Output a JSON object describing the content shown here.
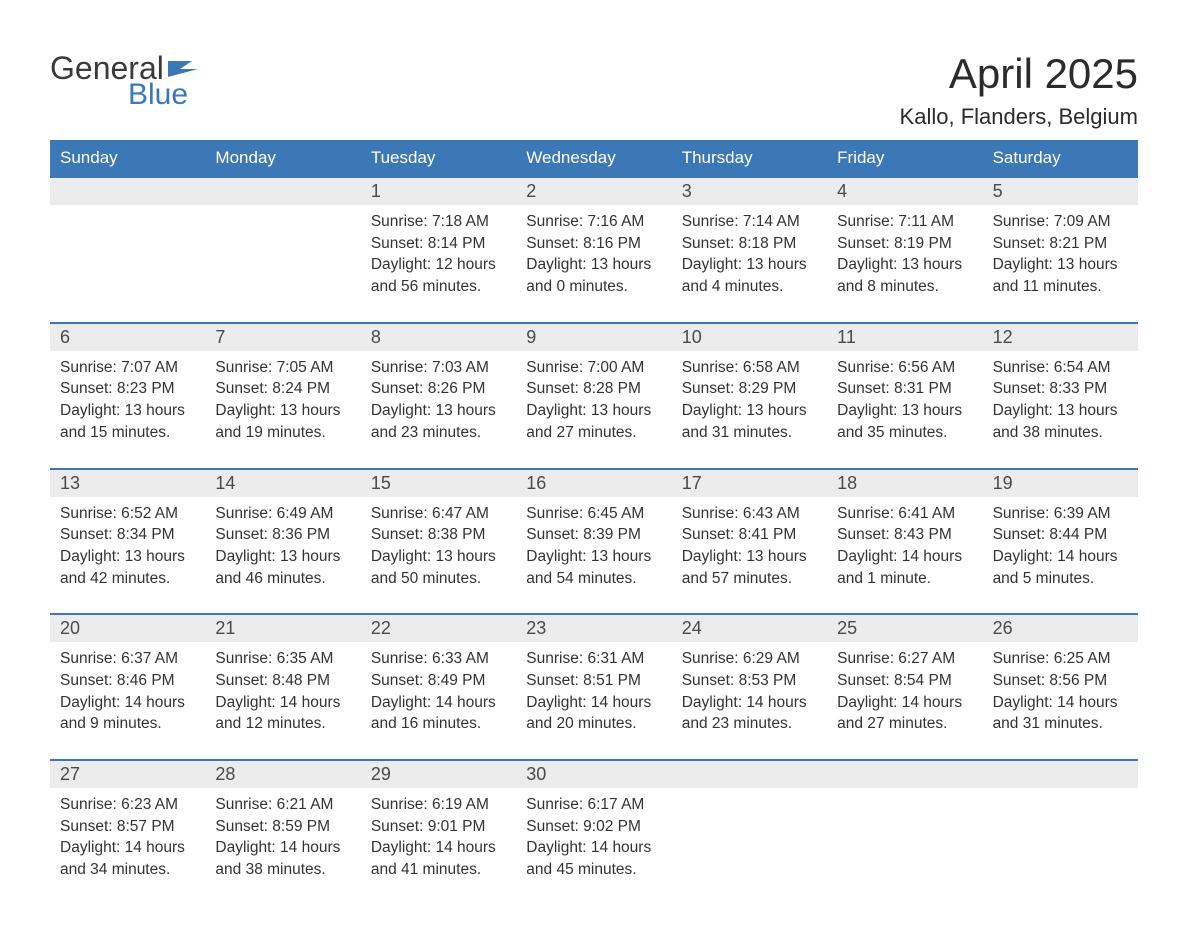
{
  "logo": {
    "line1": "General",
    "line2": "Blue",
    "flag_color": "#3b78b5"
  },
  "title": "April 2025",
  "subtitle": "Kallo, Flanders, Belgium",
  "colors": {
    "header_bg": "#3b78b5",
    "header_text": "#ffffff",
    "daynum_bg": "#ececec",
    "daynum_text": "#4a4a4a",
    "body_text": "#333333",
    "week_border": "#3b78b5",
    "page_bg": "#ffffff"
  },
  "font_sizes": {
    "title": 42,
    "subtitle": 22,
    "dayhead": 17,
    "daynum": 18,
    "body": 15.5,
    "logo": 32
  },
  "day_headers": [
    "Sunday",
    "Monday",
    "Tuesday",
    "Wednesday",
    "Thursday",
    "Friday",
    "Saturday"
  ],
  "labels": {
    "sunrise": "Sunrise: ",
    "sunset": "Sunset: ",
    "daylight": "Daylight: "
  },
  "weeks": [
    [
      null,
      null,
      {
        "n": "1",
        "sunrise": "7:18 AM",
        "sunset": "8:14 PM",
        "daylight": "12 hours and 56 minutes."
      },
      {
        "n": "2",
        "sunrise": "7:16 AM",
        "sunset": "8:16 PM",
        "daylight": "13 hours and 0 minutes."
      },
      {
        "n": "3",
        "sunrise": "7:14 AM",
        "sunset": "8:18 PM",
        "daylight": "13 hours and 4 minutes."
      },
      {
        "n": "4",
        "sunrise": "7:11 AM",
        "sunset": "8:19 PM",
        "daylight": "13 hours and 8 minutes."
      },
      {
        "n": "5",
        "sunrise": "7:09 AM",
        "sunset": "8:21 PM",
        "daylight": "13 hours and 11 minutes."
      }
    ],
    [
      {
        "n": "6",
        "sunrise": "7:07 AM",
        "sunset": "8:23 PM",
        "daylight": "13 hours and 15 minutes."
      },
      {
        "n": "7",
        "sunrise": "7:05 AM",
        "sunset": "8:24 PM",
        "daylight": "13 hours and 19 minutes."
      },
      {
        "n": "8",
        "sunrise": "7:03 AM",
        "sunset": "8:26 PM",
        "daylight": "13 hours and 23 minutes."
      },
      {
        "n": "9",
        "sunrise": "7:00 AM",
        "sunset": "8:28 PM",
        "daylight": "13 hours and 27 minutes."
      },
      {
        "n": "10",
        "sunrise": "6:58 AM",
        "sunset": "8:29 PM",
        "daylight": "13 hours and 31 minutes."
      },
      {
        "n": "11",
        "sunrise": "6:56 AM",
        "sunset": "8:31 PM",
        "daylight": "13 hours and 35 minutes."
      },
      {
        "n": "12",
        "sunrise": "6:54 AM",
        "sunset": "8:33 PM",
        "daylight": "13 hours and 38 minutes."
      }
    ],
    [
      {
        "n": "13",
        "sunrise": "6:52 AM",
        "sunset": "8:34 PM",
        "daylight": "13 hours and 42 minutes."
      },
      {
        "n": "14",
        "sunrise": "6:49 AM",
        "sunset": "8:36 PM",
        "daylight": "13 hours and 46 minutes."
      },
      {
        "n": "15",
        "sunrise": "6:47 AM",
        "sunset": "8:38 PM",
        "daylight": "13 hours and 50 minutes."
      },
      {
        "n": "16",
        "sunrise": "6:45 AM",
        "sunset": "8:39 PM",
        "daylight": "13 hours and 54 minutes."
      },
      {
        "n": "17",
        "sunrise": "6:43 AM",
        "sunset": "8:41 PM",
        "daylight": "13 hours and 57 minutes."
      },
      {
        "n": "18",
        "sunrise": "6:41 AM",
        "sunset": "8:43 PM",
        "daylight": "14 hours and 1 minute."
      },
      {
        "n": "19",
        "sunrise": "6:39 AM",
        "sunset": "8:44 PM",
        "daylight": "14 hours and 5 minutes."
      }
    ],
    [
      {
        "n": "20",
        "sunrise": "6:37 AM",
        "sunset": "8:46 PM",
        "daylight": "14 hours and 9 minutes."
      },
      {
        "n": "21",
        "sunrise": "6:35 AM",
        "sunset": "8:48 PM",
        "daylight": "14 hours and 12 minutes."
      },
      {
        "n": "22",
        "sunrise": "6:33 AM",
        "sunset": "8:49 PM",
        "daylight": "14 hours and 16 minutes."
      },
      {
        "n": "23",
        "sunrise": "6:31 AM",
        "sunset": "8:51 PM",
        "daylight": "14 hours and 20 minutes."
      },
      {
        "n": "24",
        "sunrise": "6:29 AM",
        "sunset": "8:53 PM",
        "daylight": "14 hours and 23 minutes."
      },
      {
        "n": "25",
        "sunrise": "6:27 AM",
        "sunset": "8:54 PM",
        "daylight": "14 hours and 27 minutes."
      },
      {
        "n": "26",
        "sunrise": "6:25 AM",
        "sunset": "8:56 PM",
        "daylight": "14 hours and 31 minutes."
      }
    ],
    [
      {
        "n": "27",
        "sunrise": "6:23 AM",
        "sunset": "8:57 PM",
        "daylight": "14 hours and 34 minutes."
      },
      {
        "n": "28",
        "sunrise": "6:21 AM",
        "sunset": "8:59 PM",
        "daylight": "14 hours and 38 minutes."
      },
      {
        "n": "29",
        "sunrise": "6:19 AM",
        "sunset": "9:01 PM",
        "daylight": "14 hours and 41 minutes."
      },
      {
        "n": "30",
        "sunrise": "6:17 AM",
        "sunset": "9:02 PM",
        "daylight": "14 hours and 45 minutes."
      },
      null,
      null,
      null
    ]
  ]
}
